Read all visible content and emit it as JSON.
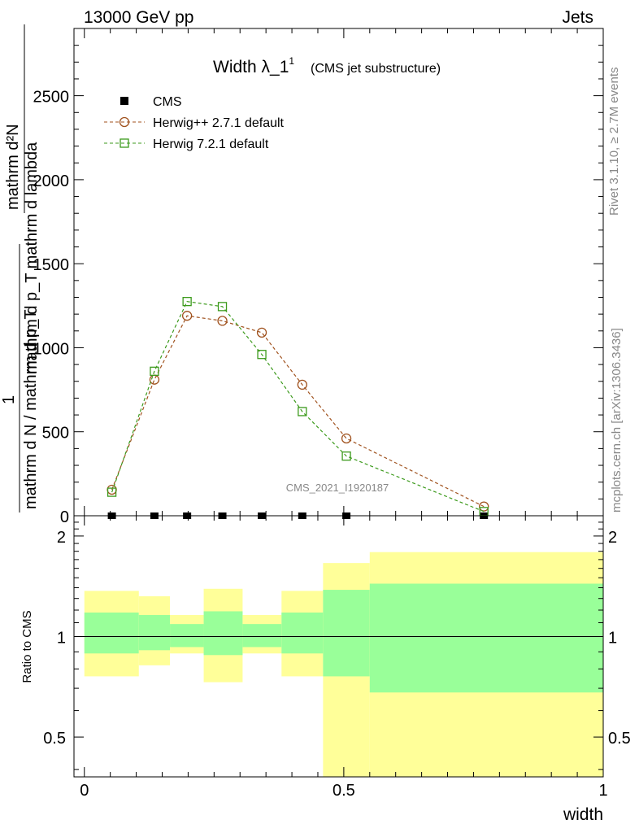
{
  "header": {
    "left": "13000 GeV pp",
    "right": "Jets"
  },
  "title": {
    "main": "Width λ_1",
    "sup": "1",
    "sub": "(CMS jet substructure)"
  },
  "side_labels": {
    "rivet": "Rivet 3.1.10, ≥ 2.7M events",
    "mcplots": "mcplots.cern.ch [arXiv:1306.3436]"
  },
  "watermark": "CMS_2021_I1920187",
  "y_label_top": {
    "numerator": "mathrm d²N",
    "denominator": "mathrm d p_T mathrm d lambda"
  },
  "y_label_bottom": {
    "numerator": "1",
    "denominator": "mathrm d N / mathrm d p_T"
  },
  "ratio_ylabel": "Ratio to CMS",
  "xlabel": "width",
  "legend": [
    {
      "label": "CMS",
      "marker": "filled-square",
      "color": "#000000"
    },
    {
      "label": "Herwig++ 2.7.1 default",
      "marker": "open-circle",
      "color": "#a0521e"
    },
    {
      "label": "Herwig 7.2.1 default",
      "marker": "open-square",
      "color": "#3c9a1c"
    }
  ],
  "chart_data": [
    {
      "type": "line",
      "panel": "main",
      "xlim": [
        -0.02,
        1.0
      ],
      "ylim": [
        0,
        2900
      ],
      "yticks": [
        0,
        500,
        1000,
        1500,
        2000,
        2500
      ],
      "ytick_labels": [
        "0",
        "500",
        "1000",
        "1500",
        "2000",
        "2500"
      ],
      "series": [
        {
          "name": "CMS",
          "color": "#000000",
          "x": [
            0.053,
            0.135,
            0.198,
            0.266,
            0.342,
            0.42,
            0.505,
            0.77
          ],
          "values": [
            0,
            0,
            0,
            0,
            0,
            0,
            0,
            0
          ]
        },
        {
          "name": "Herwig++ 2.7.1 default",
          "color": "#a0521e",
          "x": [
            0.053,
            0.135,
            0.198,
            0.266,
            0.342,
            0.42,
            0.505,
            0.77
          ],
          "values": [
            155,
            810,
            1190,
            1160,
            1090,
            780,
            460,
            55
          ]
        },
        {
          "name": "Herwig 7.2.1 default",
          "color": "#3c9a1c",
          "x": [
            0.053,
            0.135,
            0.198,
            0.266,
            0.342,
            0.42,
            0.505,
            0.77
          ],
          "values": [
            140,
            860,
            1275,
            1245,
            960,
            620,
            355,
            25
          ]
        }
      ]
    },
    {
      "type": "area",
      "panel": "ratio",
      "xlim": [
        -0.02,
        1.0
      ],
      "ylim": [
        0.38,
        2.3
      ],
      "log_y": true,
      "yticks": [
        0.5,
        1,
        2
      ],
      "ytick_labels": [
        "0.5",
        "1",
        "2"
      ],
      "xticks": [
        0,
        0.5,
        1
      ],
      "xtick_labels": [
        "0",
        "0.5",
        "1"
      ],
      "bins": [
        {
          "x0": 0.0,
          "x1": 0.105,
          "stat_lo": 0.89,
          "stat_hi": 1.18,
          "tot_lo": 0.76,
          "tot_hi": 1.37
        },
        {
          "x0": 0.105,
          "x1": 0.165,
          "stat_lo": 0.91,
          "stat_hi": 1.16,
          "tot_lo": 0.82,
          "tot_hi": 1.32
        },
        {
          "x0": 0.165,
          "x1": 0.23,
          "stat_lo": 0.93,
          "stat_hi": 1.09,
          "tot_lo": 0.89,
          "tot_hi": 1.16
        },
        {
          "x0": 0.23,
          "x1": 0.305,
          "stat_lo": 0.88,
          "stat_hi": 1.19,
          "tot_lo": 0.73,
          "tot_hi": 1.39
        },
        {
          "x0": 0.305,
          "x1": 0.38,
          "stat_lo": 0.93,
          "stat_hi": 1.09,
          "tot_lo": 0.89,
          "tot_hi": 1.16
        },
        {
          "x0": 0.38,
          "x1": 0.46,
          "stat_lo": 0.89,
          "stat_hi": 1.18,
          "tot_lo": 0.76,
          "tot_hi": 1.37
        },
        {
          "x0": 0.46,
          "x1": 0.55,
          "stat_lo": 0.76,
          "stat_hi": 1.38,
          "tot_lo": 0.37,
          "tot_hi": 1.66
        },
        {
          "x0": 0.55,
          "x1": 1.0,
          "stat_lo": 0.68,
          "stat_hi": 1.44,
          "tot_lo": 0.36,
          "tot_hi": 1.79
        }
      ],
      "colors": {
        "stat": "#99ff99",
        "total": "#ffff99"
      }
    }
  ]
}
